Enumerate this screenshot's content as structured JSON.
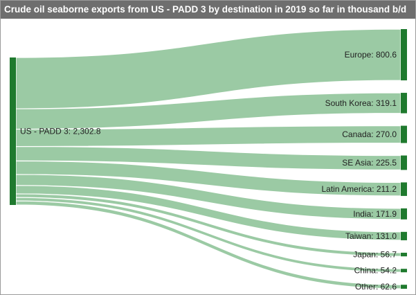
{
  "title": "Crude oil seaborne exports from US - PADD 3 by destination in 2019 so far in thousand b/d",
  "colors": {
    "title_bg": "#6e6e6e",
    "node": "#1f7a2e",
    "link": "#96c79f"
  },
  "chart_data": {
    "type": "sankey",
    "source": {
      "name": "US - PADD 3",
      "value": 2302.8,
      "label": "US - PADD 3: 2,302.8"
    },
    "targets": [
      {
        "name": "Europe",
        "value": 800.6,
        "label": "Europe: 800.6"
      },
      {
        "name": "South Korea",
        "value": 319.1,
        "label": "South Korea: 319.1"
      },
      {
        "name": "Canada",
        "value": 270.0,
        "label": "Canada: 270.0"
      },
      {
        "name": "SE Asia",
        "value": 225.5,
        "label": "SE Asia: 225.5"
      },
      {
        "name": "Latin America",
        "value": 211.2,
        "label": "Latin America: 211.2"
      },
      {
        "name": "India",
        "value": 171.9,
        "label": "India: 171.9"
      },
      {
        "name": "Taiwan",
        "value": 131.0,
        "label": "Taiwan: 131.0"
      },
      {
        "name": "Japan",
        "value": 56.7,
        "label": "Japan: 56.7"
      },
      {
        "name": "China",
        "value": 54.2,
        "label": "China: 54.2"
      },
      {
        "name": "Other",
        "value": 62.6,
        "label": "Other: 62.6"
      }
    ]
  }
}
